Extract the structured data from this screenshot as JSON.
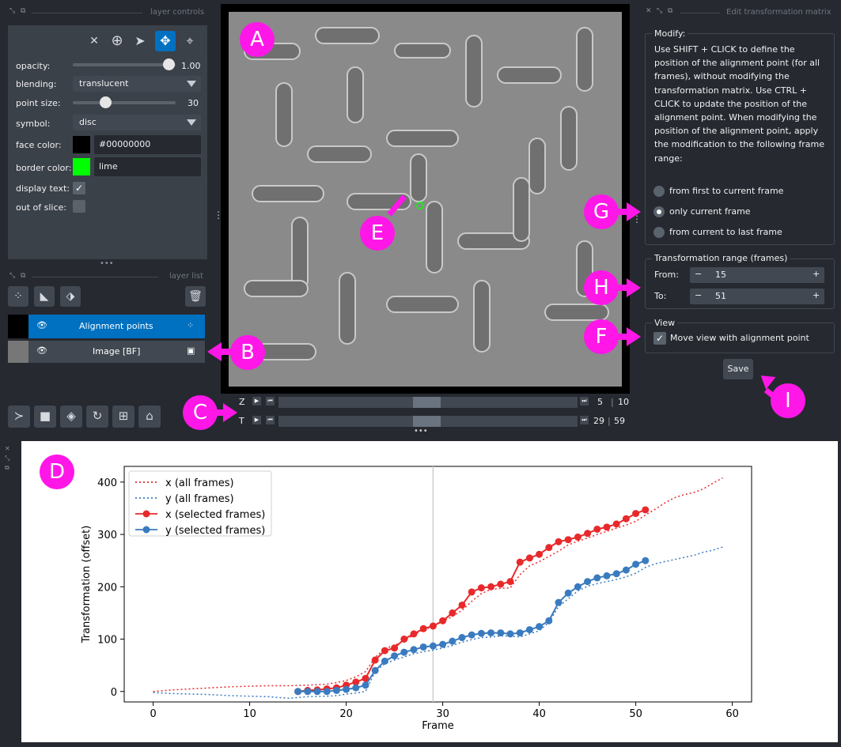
{
  "layer_controls": {
    "title": "layer controls",
    "opacity_label": "opacity:",
    "opacity_value": "1.00",
    "blending_label": "blending:",
    "blending_value": "translucent",
    "point_size_label": "point size:",
    "point_size_value": "30",
    "symbol_label": "symbol:",
    "symbol_value": "disc",
    "face_color_label": "face color:",
    "face_color_value": "#00000000",
    "border_color_label": "border color:",
    "border_color_value": "lime",
    "display_text_label": "display text:",
    "out_of_slice_label": "out of slice:",
    "colors": {
      "border_swatch": "#00ff00",
      "face_swatch": "#000000",
      "active_mode": "#0070c0"
    }
  },
  "layer_list": {
    "title": "layer list",
    "layers": [
      {
        "name": "Alignment points",
        "selected": true
      },
      {
        "name": "Image [BF]",
        "selected": false
      }
    ]
  },
  "dims": {
    "z": {
      "label": "Z",
      "current": "5",
      "total": "10"
    },
    "t": {
      "label": "T",
      "current": "29",
      "total": "59"
    }
  },
  "transform_panel": {
    "title": "Edit transformation matrix",
    "modify_title": "Modify:",
    "modify_text": "Use SHIFT + CLICK to define the position of the alignment point (for all frames), without modifying the transformation matrix. Use CTRL + CLICK to update the position of the alignment point. When modifying the position of the alignment point, apply the modification to the following frame range:",
    "radios": [
      "from first to current frame",
      "only current frame",
      "from current to last frame"
    ],
    "selected_radio": 1,
    "range_title": "Transformation range (frames)",
    "from_label": "From:",
    "from_value": "15",
    "to_label": "To:",
    "to_value": "51",
    "view_title": "View",
    "view_checkbox": "Move view with alignment point",
    "save_label": "Save"
  },
  "markers": [
    "A",
    "B",
    "C",
    "D",
    "E",
    "F",
    "G",
    "H",
    "I"
  ],
  "chart_data": {
    "type": "line",
    "xlabel": "Frame",
    "ylabel": "Transformation (offset)",
    "xlim": [
      -3,
      62
    ],
    "ylim": [
      -20,
      430
    ],
    "xticks": [
      0,
      10,
      20,
      30,
      40,
      50,
      60
    ],
    "yticks": [
      0,
      100,
      200,
      300,
      400
    ],
    "current_frame_line": 29,
    "legend_position": "top-left",
    "series": [
      {
        "name": "x (all frames)",
        "style": "dotted",
        "color": "#e8292b",
        "x": [
          0,
          2,
          4,
          6,
          8,
          10,
          12,
          14,
          16,
          18,
          19,
          20,
          21,
          22,
          23,
          24,
          25,
          26,
          27,
          28,
          29,
          30,
          31,
          32,
          33,
          34,
          35,
          36,
          37,
          38,
          39,
          40,
          41,
          42,
          43,
          44,
          45,
          46,
          47,
          48,
          49,
          50,
          51,
          52,
          53,
          54,
          55,
          56,
          57,
          58,
          59
        ],
        "values": [
          0,
          3,
          5,
          7,
          9,
          10,
          11,
          11,
          12,
          14,
          17,
          21,
          28,
          38,
          65,
          82,
          88,
          97,
          108,
          118,
          124,
          134,
          143,
          155,
          172,
          187,
          195,
          197,
          198,
          223,
          240,
          248,
          258,
          268,
          280,
          287,
          293,
          300,
          306,
          312,
          318,
          325,
          337,
          348,
          360,
          370,
          376,
          380,
          387,
          398,
          408
        ]
      },
      {
        "name": "y (all frames)",
        "style": "dotted",
        "color": "#3a7bbf",
        "x": [
          0,
          2,
          4,
          6,
          8,
          10,
          12,
          14,
          16,
          18,
          19,
          20,
          21,
          22,
          23,
          24,
          25,
          26,
          27,
          28,
          29,
          30,
          31,
          32,
          33,
          34,
          35,
          36,
          37,
          38,
          39,
          40,
          41,
          42,
          43,
          44,
          45,
          46,
          47,
          48,
          49,
          50,
          51,
          52,
          53,
          54,
          55,
          56,
          57,
          58,
          59
        ],
        "values": [
          -2,
          -4,
          -5,
          -6,
          -8,
          -9,
          -10,
          -13,
          -10,
          -9,
          -8,
          -5,
          -3,
          0,
          38,
          53,
          60,
          66,
          72,
          76,
          79,
          83,
          88,
          94,
          99,
          103,
          104,
          106,
          106,
          104,
          110,
          116,
          132,
          162,
          177,
          192,
          201,
          206,
          210,
          214,
          219,
          226,
          237,
          244,
          248,
          252,
          256,
          260,
          266,
          270,
          276
        ]
      },
      {
        "name": "x (selected frames)",
        "style": "solid-marker",
        "color": "#e8292b",
        "x": [
          15,
          16,
          17,
          18,
          19,
          20,
          21,
          22,
          23,
          24,
          25,
          26,
          27,
          28,
          29,
          30,
          31,
          32,
          33,
          34,
          35,
          36,
          37,
          38,
          39,
          40,
          41,
          42,
          43,
          44,
          45,
          46,
          47,
          48,
          49,
          50,
          51
        ],
        "values": [
          0,
          2,
          3,
          5,
          7,
          12,
          18,
          25,
          60,
          78,
          83,
          100,
          110,
          120,
          125,
          135,
          150,
          165,
          190,
          198,
          200,
          205,
          210,
          247,
          255,
          262,
          275,
          286,
          290,
          295,
          302,
          310,
          314,
          320,
          330,
          340,
          347
        ]
      },
      {
        "name": "y (selected frames)",
        "style": "solid-marker",
        "color": "#3a7bbf",
        "x": [
          15,
          16,
          17,
          18,
          19,
          20,
          21,
          22,
          23,
          24,
          25,
          26,
          27,
          28,
          29,
          30,
          31,
          32,
          33,
          34,
          35,
          36,
          37,
          38,
          39,
          40,
          41,
          42,
          43,
          44,
          45,
          46,
          47,
          48,
          49,
          50,
          51
        ],
        "values": [
          0,
          0,
          0,
          0,
          2,
          4,
          7,
          12,
          40,
          58,
          68,
          75,
          80,
          85,
          87,
          90,
          96,
          103,
          108,
          111,
          112,
          112,
          110,
          112,
          118,
          124,
          135,
          170,
          188,
          200,
          210,
          217,
          221,
          225,
          232,
          243,
          250
        ]
      }
    ]
  }
}
